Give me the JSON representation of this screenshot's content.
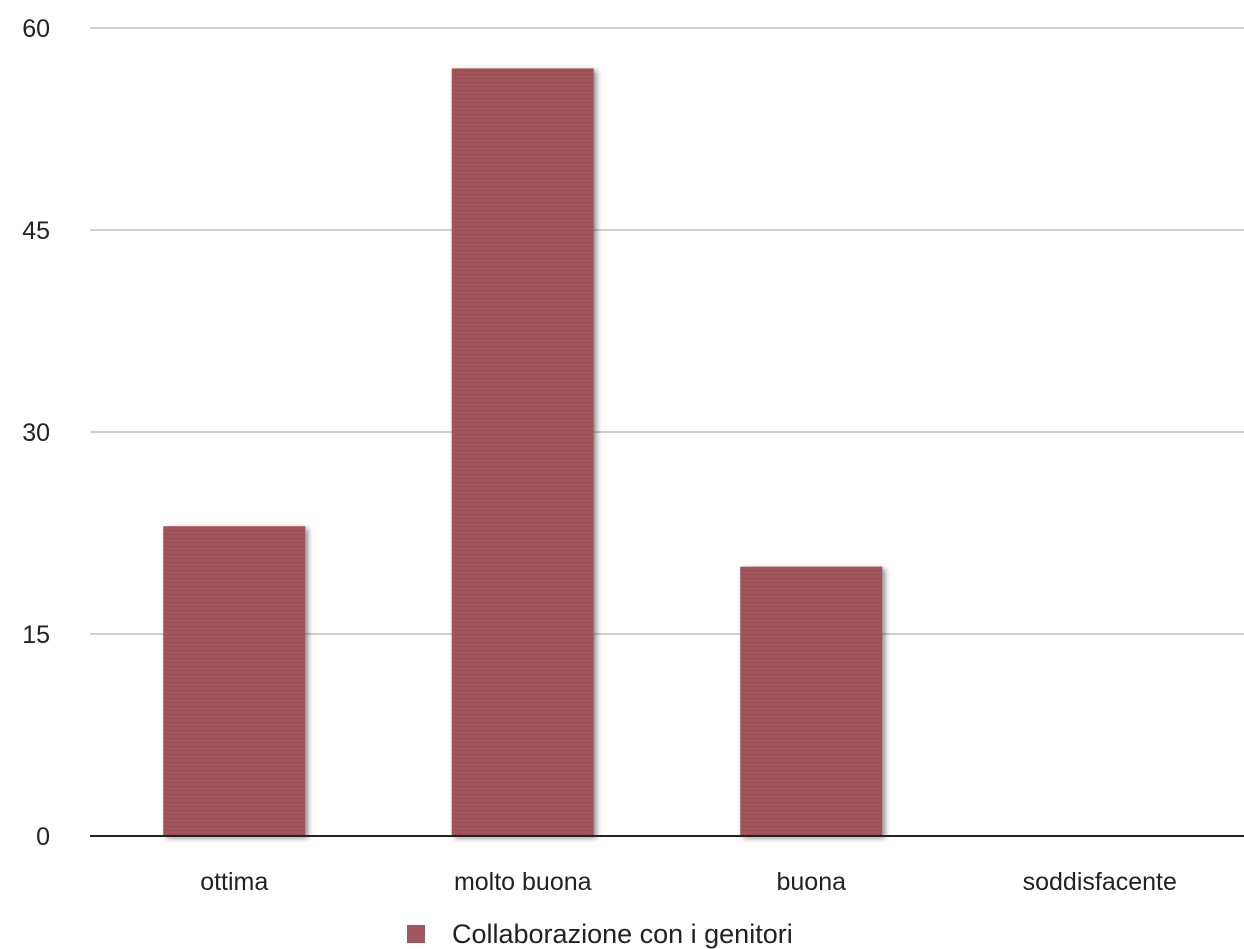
{
  "chart_data": {
    "type": "bar",
    "categories": [
      "ottima",
      "molto buona",
      "buona",
      "soddisfacente"
    ],
    "series": [
      {
        "name": "Collaborazione con i genitori",
        "values": [
          23,
          57,
          20,
          0
        ],
        "color": "#a0565a"
      }
    ],
    "ylim": [
      0,
      60
    ],
    "yticks": [
      0,
      15,
      30,
      45,
      60
    ],
    "grid": true,
    "legend_position": "bottom-center"
  }
}
